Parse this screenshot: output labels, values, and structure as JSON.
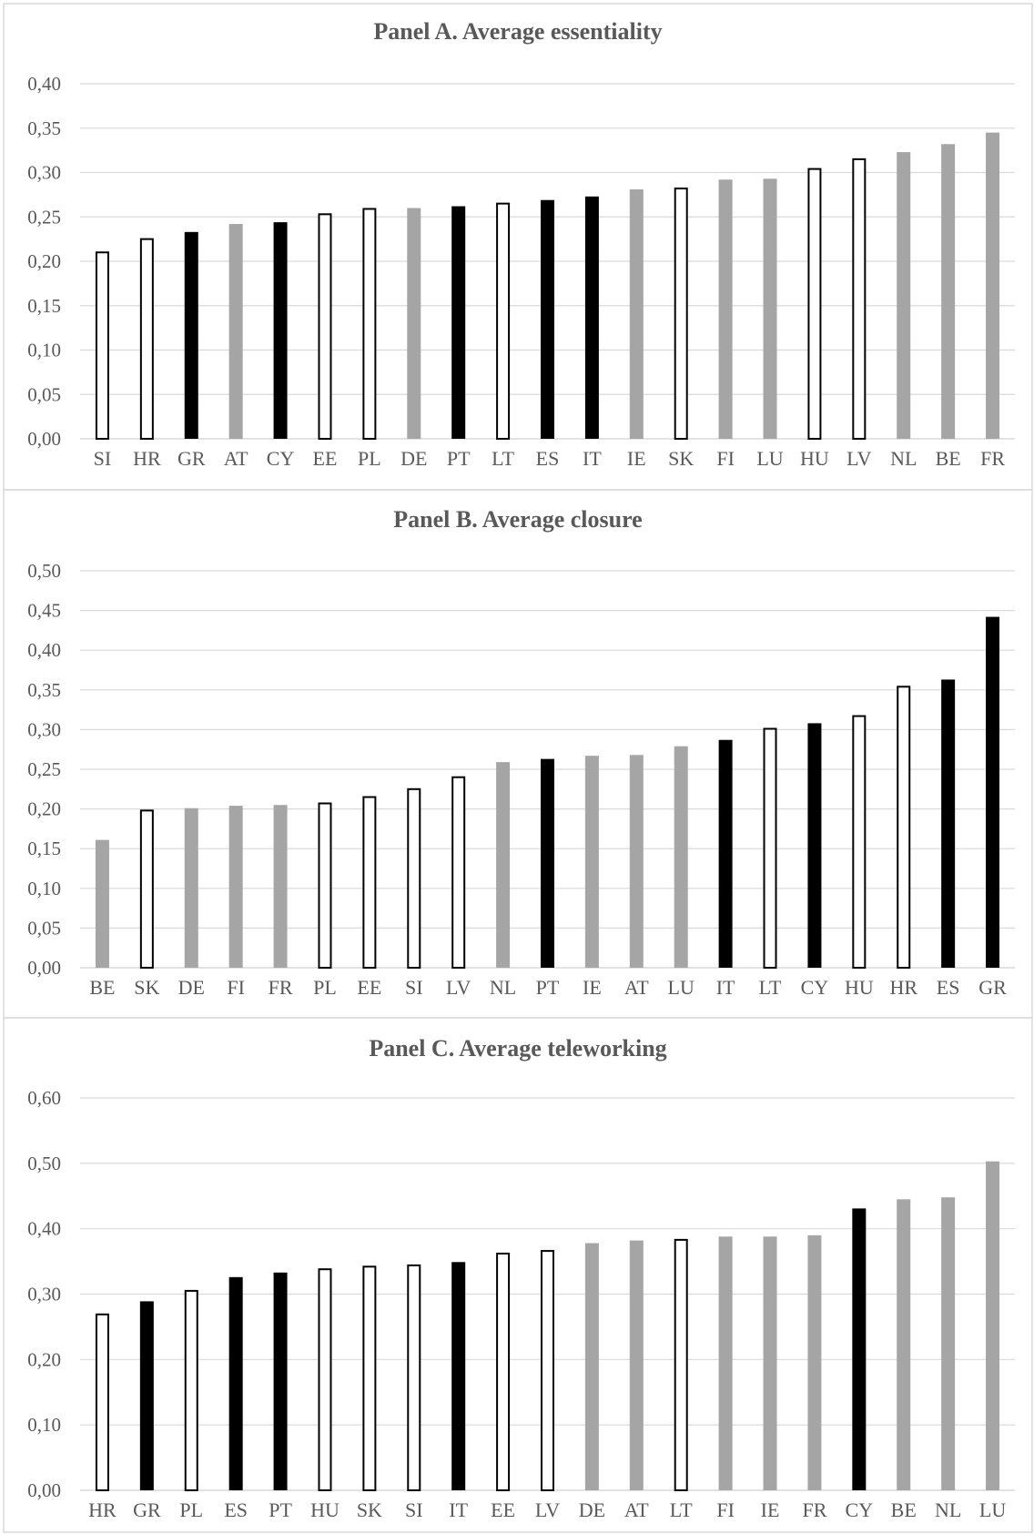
{
  "colors": {
    "gray": "#a5a5a5",
    "black": "#000000",
    "white": "#ffffff",
    "outline": "#000000"
  },
  "chart_data": [
    {
      "type": "bar",
      "title": "Panel A. Average essentiality",
      "ylim": [
        0,
        0.4
      ],
      "yticks": [
        "0,00",
        "0,05",
        "0,10",
        "0,15",
        "0,20",
        "0,25",
        "0,30",
        "0,35",
        "0,40"
      ],
      "ytick_values": [
        0,
        0.05,
        0.1,
        0.15,
        0.2,
        0.25,
        0.3,
        0.35,
        0.4
      ],
      "grid": true,
      "categories": [
        "SI",
        "HR",
        "GR",
        "AT",
        "CY",
        "EE",
        "PL",
        "DE",
        "PT",
        "LT",
        "ES",
        "IT",
        "IE",
        "SK",
        "FI",
        "LU",
        "HU",
        "LV",
        "NL",
        "BE",
        "FR"
      ],
      "values": [
        0.21,
        0.225,
        0.233,
        0.242,
        0.244,
        0.253,
        0.259,
        0.26,
        0.262,
        0.265,
        0.269,
        0.273,
        0.281,
        0.282,
        0.292,
        0.293,
        0.304,
        0.315,
        0.323,
        0.332,
        0.345
      ],
      "fills": [
        "white",
        "white",
        "black",
        "gray",
        "black",
        "white",
        "white",
        "gray",
        "black",
        "white",
        "black",
        "black",
        "gray",
        "white",
        "gray",
        "gray",
        "white",
        "white",
        "gray",
        "gray",
        "gray"
      ]
    },
    {
      "type": "bar",
      "title": "Panel B. Average closure",
      "ylim": [
        0,
        0.5
      ],
      "yticks": [
        "0,00",
        "0,05",
        "0,10",
        "0,15",
        "0,20",
        "0,25",
        "0,30",
        "0,35",
        "0,40",
        "0,45",
        "0,50"
      ],
      "ytick_values": [
        0,
        0.05,
        0.1,
        0.15,
        0.2,
        0.25,
        0.3,
        0.35,
        0.4,
        0.45,
        0.5
      ],
      "grid": true,
      "categories": [
        "BE",
        "SK",
        "DE",
        "FI",
        "FR",
        "PL",
        "EE",
        "SI",
        "LV",
        "NL",
        "PT",
        "IE",
        "AT",
        "LU",
        "IT",
        "LT",
        "CY",
        "HU",
        "HR",
        "ES",
        "GR"
      ],
      "values": [
        0.161,
        0.198,
        0.201,
        0.204,
        0.205,
        0.207,
        0.215,
        0.225,
        0.24,
        0.259,
        0.263,
        0.267,
        0.268,
        0.279,
        0.287,
        0.301,
        0.308,
        0.317,
        0.354,
        0.363,
        0.442
      ],
      "fills": [
        "gray",
        "white",
        "gray",
        "gray",
        "gray",
        "white",
        "white",
        "white",
        "white",
        "gray",
        "black",
        "gray",
        "gray",
        "gray",
        "black",
        "white",
        "black",
        "white",
        "white",
        "black",
        "black"
      ]
    },
    {
      "type": "bar",
      "title": "Panel C. Average teleworking",
      "ylim": [
        0,
        0.6
      ],
      "yticks": [
        "0,00",
        "0,10",
        "0,20",
        "0,30",
        "0,40",
        "0,50",
        "0,60"
      ],
      "ytick_values": [
        0,
        0.1,
        0.2,
        0.3,
        0.4,
        0.5,
        0.6
      ],
      "grid": true,
      "categories": [
        "HR",
        "GR",
        "PL",
        "ES",
        "PT",
        "HU",
        "SK",
        "SI",
        "IT",
        "EE",
        "LV",
        "DE",
        "AT",
        "LT",
        "FI",
        "IE",
        "FR",
        "CY",
        "BE",
        "NL",
        "LU"
      ],
      "values": [
        0.269,
        0.289,
        0.305,
        0.326,
        0.333,
        0.338,
        0.342,
        0.344,
        0.349,
        0.362,
        0.366,
        0.378,
        0.382,
        0.383,
        0.388,
        0.388,
        0.39,
        0.431,
        0.445,
        0.448,
        0.503
      ],
      "fills": [
        "white",
        "black",
        "white",
        "black",
        "black",
        "white",
        "white",
        "white",
        "black",
        "white",
        "white",
        "gray",
        "gray",
        "white",
        "gray",
        "gray",
        "gray",
        "black",
        "gray",
        "gray",
        "gray"
      ]
    }
  ]
}
